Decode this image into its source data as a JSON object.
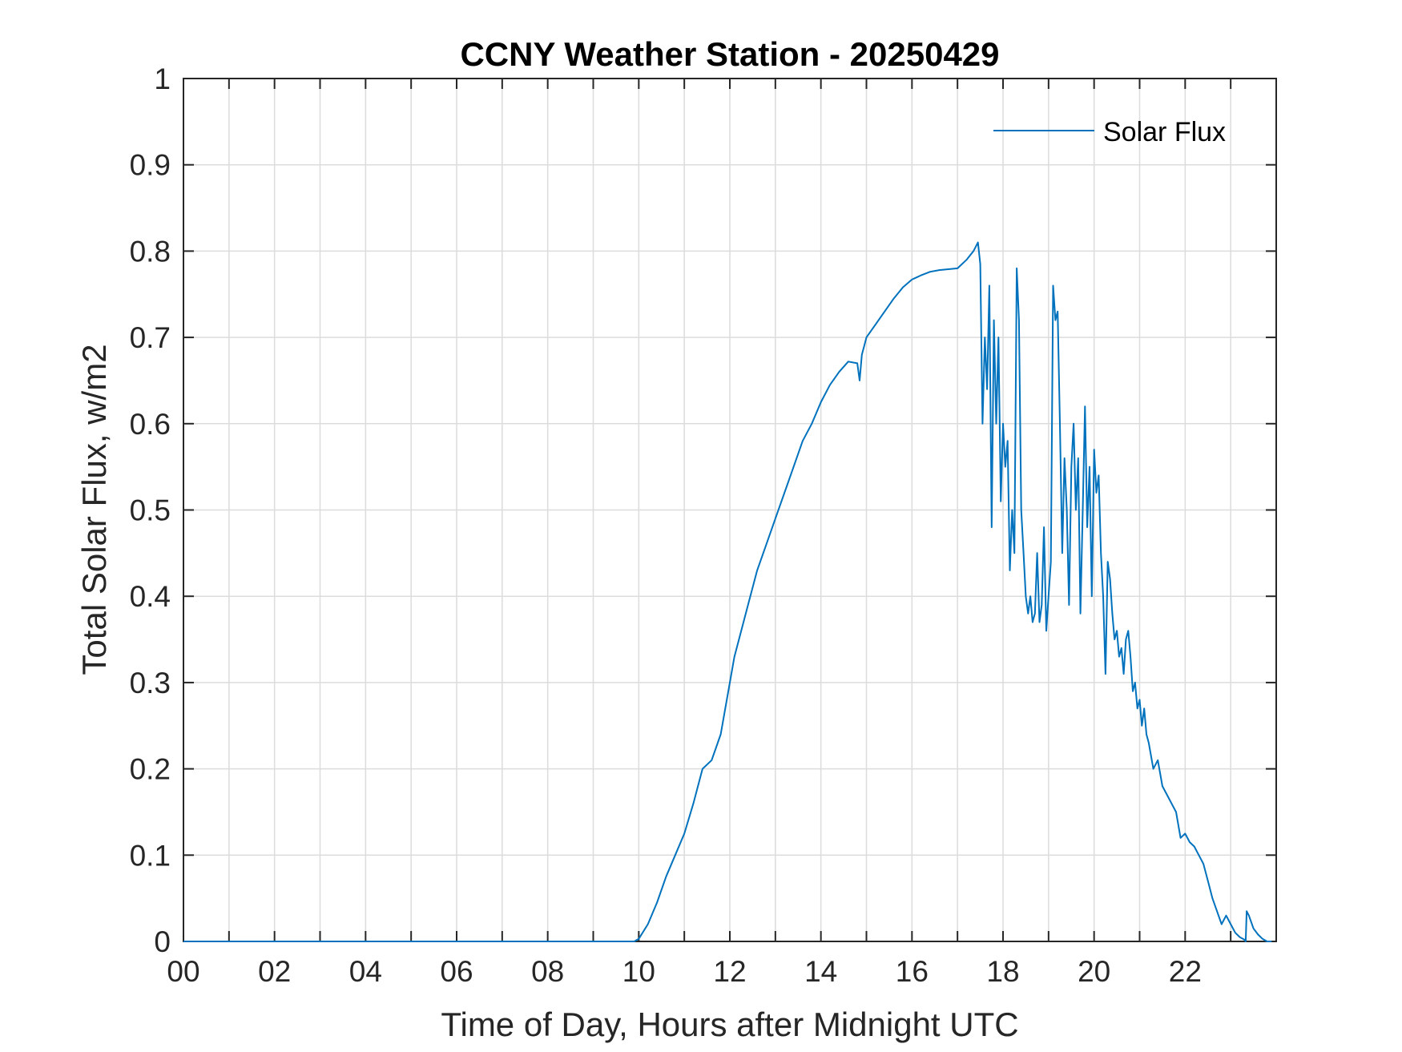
{
  "chart_data": {
    "type": "line",
    "title": "CCNY Weather Station - 20250429",
    "xlabel": "Time of Day, Hours after Midnight UTC",
    "ylabel": "Total Solar Flux, w/m2",
    "xlim": [
      0,
      24
    ],
    "ylim": [
      0,
      1
    ],
    "grid": true,
    "legend_position": "top-right",
    "line_color": "#0072BD",
    "x_ticks": [
      0,
      2,
      4,
      6,
      8,
      10,
      12,
      14,
      16,
      18,
      20,
      22
    ],
    "x_tick_labels": [
      "00",
      "02",
      "04",
      "06",
      "08",
      "10",
      "12",
      "14",
      "16",
      "18",
      "20",
      "22"
    ],
    "x_minor_ticks": [
      1,
      3,
      5,
      7,
      9,
      11,
      13,
      15,
      17,
      19,
      21,
      23
    ],
    "y_ticks": [
      0,
      0.1,
      0.2,
      0.3,
      0.4,
      0.5,
      0.6,
      0.7,
      0.8,
      0.9,
      1
    ],
    "y_tick_labels": [
      "0",
      "0.1",
      "0.2",
      "0.3",
      "0.4",
      "0.5",
      "0.6",
      "0.7",
      "0.8",
      "0.9",
      "1"
    ],
    "series": [
      {
        "name": "Solar Flux",
        "x": [
          0,
          9.5,
          9.9,
          10.0,
          10.2,
          10.4,
          10.6,
          10.8,
          11.0,
          11.2,
          11.3,
          11.4,
          11.6,
          11.8,
          11.9,
          12.0,
          12.1,
          12.2,
          12.4,
          12.6,
          12.8,
          13.0,
          13.2,
          13.4,
          13.6,
          13.8,
          14.0,
          14.2,
          14.4,
          14.6,
          14.8,
          14.85,
          14.9,
          14.95,
          15.0,
          15.2,
          15.4,
          15.6,
          15.8,
          16.0,
          16.2,
          16.4,
          16.6,
          16.8,
          17.0,
          17.2,
          17.35,
          17.45,
          17.5,
          17.55,
          17.6,
          17.65,
          17.7,
          17.75,
          17.8,
          17.85,
          17.9,
          17.95,
          18.0,
          18.05,
          18.1,
          18.15,
          18.2,
          18.25,
          18.3,
          18.35,
          18.4,
          18.45,
          18.5,
          18.55,
          18.6,
          18.65,
          18.7,
          18.75,
          18.8,
          18.85,
          18.9,
          18.95,
          19.0,
          19.05,
          19.1,
          19.15,
          19.2,
          19.25,
          19.3,
          19.35,
          19.4,
          19.45,
          19.5,
          19.55,
          19.6,
          19.65,
          19.7,
          19.75,
          19.8,
          19.85,
          19.9,
          19.95,
          20.0,
          20.05,
          20.1,
          20.15,
          20.2,
          20.25,
          20.3,
          20.35,
          20.4,
          20.45,
          20.5,
          20.55,
          20.6,
          20.65,
          20.7,
          20.75,
          20.8,
          20.85,
          20.9,
          20.95,
          21.0,
          21.05,
          21.1,
          21.15,
          21.2,
          21.3,
          21.4,
          21.5,
          21.6,
          21.7,
          21.8,
          21.9,
          22.0,
          22.1,
          22.2,
          22.3,
          22.4,
          22.5,
          22.6,
          22.7,
          22.8,
          22.9,
          23.0,
          23.1,
          23.2,
          23.3,
          23.33,
          23.35,
          23.4,
          23.5,
          23.6,
          23.7,
          23.8,
          23.9
        ],
        "y": [
          0,
          0,
          0,
          0.003,
          0.02,
          0.045,
          0.075,
          0.1,
          0.125,
          0.16,
          0.18,
          0.2,
          0.21,
          0.24,
          0.27,
          0.3,
          0.33,
          0.35,
          0.39,
          0.43,
          0.46,
          0.49,
          0.52,
          0.55,
          0.58,
          0.6,
          0.625,
          0.645,
          0.66,
          0.672,
          0.67,
          0.65,
          0.68,
          0.69,
          0.7,
          0.715,
          0.73,
          0.745,
          0.758,
          0.767,
          0.772,
          0.776,
          0.778,
          0.779,
          0.78,
          0.79,
          0.8,
          0.81,
          0.785,
          0.6,
          0.7,
          0.64,
          0.76,
          0.48,
          0.72,
          0.6,
          0.7,
          0.51,
          0.6,
          0.55,
          0.58,
          0.43,
          0.5,
          0.45,
          0.78,
          0.72,
          0.5,
          0.45,
          0.4,
          0.38,
          0.4,
          0.37,
          0.38,
          0.45,
          0.37,
          0.39,
          0.48,
          0.36,
          0.4,
          0.44,
          0.76,
          0.72,
          0.73,
          0.6,
          0.45,
          0.56,
          0.5,
          0.39,
          0.55,
          0.6,
          0.5,
          0.56,
          0.38,
          0.5,
          0.62,
          0.48,
          0.55,
          0.4,
          0.57,
          0.52,
          0.54,
          0.45,
          0.4,
          0.31,
          0.44,
          0.42,
          0.38,
          0.35,
          0.36,
          0.33,
          0.34,
          0.31,
          0.35,
          0.36,
          0.33,
          0.29,
          0.3,
          0.27,
          0.28,
          0.25,
          0.27,
          0.24,
          0.23,
          0.2,
          0.21,
          0.18,
          0.17,
          0.16,
          0.15,
          0.12,
          0.125,
          0.115,
          0.11,
          0.1,
          0.09,
          0.07,
          0.05,
          0.035,
          0.02,
          0.03,
          0.02,
          0.01,
          0.005,
          0.002,
          0,
          0.035,
          0.03,
          0.015,
          0.008,
          0.003,
          0.0,
          0.0
        ]
      }
    ],
    "legend_entries": [
      "Solar Flux"
    ]
  }
}
